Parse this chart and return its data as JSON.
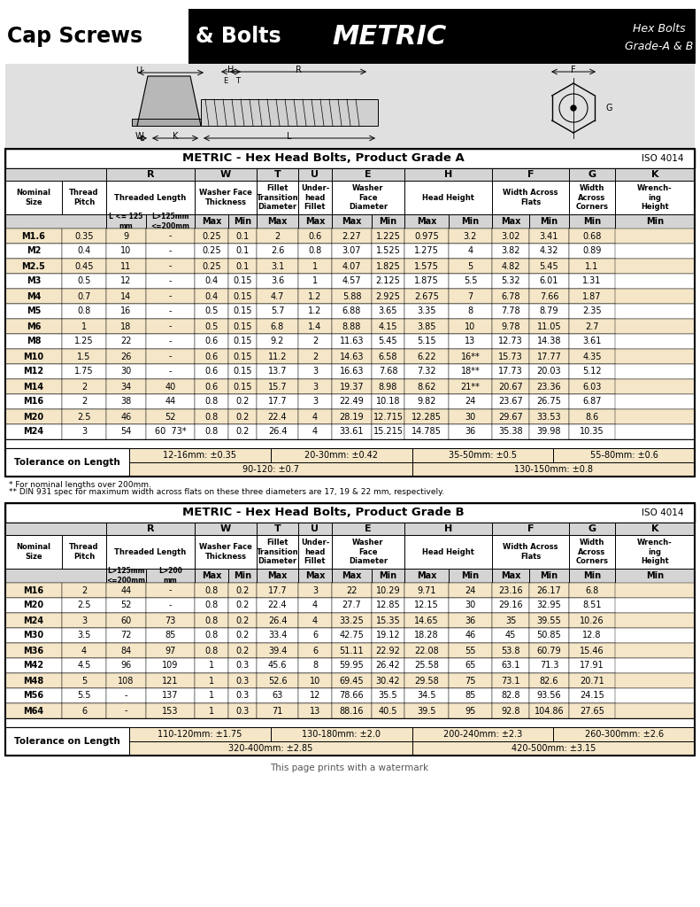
{
  "grade_a_title": "METRIC - Hex Head Bolts, Product Grade A",
  "grade_a_iso": "ISO 4014",
  "grade_b_title": "METRIC - Hex Head Bolts, Product Grade B",
  "grade_b_iso": "ISO 4014",
  "grade_a_data": [
    [
      "M1.6",
      "0.35",
      "9",
      "-",
      "0.25",
      "0.1",
      "2",
      "0.6",
      "2.27",
      "1.225",
      "0.975",
      "3.2",
      "3.02",
      "3.41",
      "0.68"
    ],
    [
      "M2",
      "0.4",
      "10",
      "-",
      "0.25",
      "0.1",
      "2.6",
      "0.8",
      "3.07",
      "1.525",
      "1.275",
      "4",
      "3.82",
      "4.32",
      "0.89"
    ],
    [
      "M2.5",
      "0.45",
      "11",
      "-",
      "0.25",
      "0.1",
      "3.1",
      "1",
      "4.07",
      "1.825",
      "1.575",
      "5",
      "4.82",
      "5.45",
      "1.1"
    ],
    [
      "M3",
      "0.5",
      "12",
      "-",
      "0.4",
      "0.15",
      "3.6",
      "1",
      "4.57",
      "2.125",
      "1.875",
      "5.5",
      "5.32",
      "6.01",
      "1.31"
    ],
    [
      "M4",
      "0.7",
      "14",
      "-",
      "0.4",
      "0.15",
      "4.7",
      "1.2",
      "5.88",
      "2.925",
      "2.675",
      "7",
      "6.78",
      "7.66",
      "1.87"
    ],
    [
      "M5",
      "0.8",
      "16",
      "-",
      "0.5",
      "0.15",
      "5.7",
      "1.2",
      "6.88",
      "3.65",
      "3.35",
      "8",
      "7.78",
      "8.79",
      "2.35"
    ],
    [
      "M6",
      "1",
      "18",
      "-",
      "0.5",
      "0.15",
      "6.8",
      "1.4",
      "8.88",
      "4.15",
      "3.85",
      "10",
      "9.78",
      "11.05",
      "2.7"
    ],
    [
      "M8",
      "1.25",
      "22",
      "-",
      "0.6",
      "0.15",
      "9.2",
      "2",
      "11.63",
      "5.45",
      "5.15",
      "13",
      "12.73",
      "14.38",
      "3.61"
    ],
    [
      "M10",
      "1.5",
      "26",
      "-",
      "0.6",
      "0.15",
      "11.2",
      "2",
      "14.63",
      "6.58",
      "6.22",
      "16**",
      "15.73",
      "17.77",
      "4.35"
    ],
    [
      "M12",
      "1.75",
      "30",
      "-",
      "0.6",
      "0.15",
      "13.7",
      "3",
      "16.63",
      "7.68",
      "7.32",
      "18**",
      "17.73",
      "20.03",
      "5.12"
    ],
    [
      "M14",
      "2",
      "34",
      "40",
      "0.6",
      "0.15",
      "15.7",
      "3",
      "19.37",
      "8.98",
      "8.62",
      "21**",
      "20.67",
      "23.36",
      "6.03"
    ],
    [
      "M16",
      "2",
      "38",
      "44",
      "0.8",
      "0.2",
      "17.7",
      "3",
      "22.49",
      "10.18",
      "9.82",
      "24",
      "23.67",
      "26.75",
      "6.87"
    ],
    [
      "M20",
      "2.5",
      "46",
      "52",
      "0.8",
      "0.2",
      "22.4",
      "4",
      "28.19",
      "12.715",
      "12.285",
      "30",
      "29.67",
      "33.53",
      "8.6"
    ],
    [
      "M24",
      "3",
      "54",
      "60  73*",
      "0.8",
      "0.2",
      "26.4",
      "4",
      "33.61",
      "15.215",
      "14.785",
      "36",
      "35.38",
      "39.98",
      "10.35"
    ]
  ],
  "grade_a_tolerance": [
    [
      "12-16mm: ±0.35",
      "20-30mm: ±0.42",
      "35-50mm: ±0.5",
      "55-80mm: ±0.6"
    ],
    [
      "90-120: ±0.7",
      "130-150mm: ±0.8"
    ]
  ],
  "grade_a_note1": "* For nominal lengths over 200mm.",
  "grade_a_note2": "** DIN 931 spec for maximum width across flats on these three diameters are 17, 19 & 22 mm, respectively.",
  "grade_b_data": [
    [
      "M16",
      "2",
      "44",
      "-",
      "0.8",
      "0.2",
      "17.7",
      "3",
      "22",
      "10.29",
      "9.71",
      "24",
      "23.16",
      "26.17",
      "6.8"
    ],
    [
      "M20",
      "2.5",
      "52",
      "-",
      "0.8",
      "0.2",
      "22.4",
      "4",
      "27.7",
      "12.85",
      "12.15",
      "30",
      "29.16",
      "32.95",
      "8.51"
    ],
    [
      "M24",
      "3",
      "60",
      "73",
      "0.8",
      "0.2",
      "26.4",
      "4",
      "33.25",
      "15.35",
      "14.65",
      "36",
      "35",
      "39.55",
      "10.26"
    ],
    [
      "M30",
      "3.5",
      "72",
      "85",
      "0.8",
      "0.2",
      "33.4",
      "6",
      "42.75",
      "19.12",
      "18.28",
      "46",
      "45",
      "50.85",
      "12.8"
    ],
    [
      "M36",
      "4",
      "84",
      "97",
      "0.8",
      "0.2",
      "39.4",
      "6",
      "51.11",
      "22.92",
      "22.08",
      "55",
      "53.8",
      "60.79",
      "15.46"
    ],
    [
      "M42",
      "4.5",
      "96",
      "109",
      "1",
      "0.3",
      "45.6",
      "8",
      "59.95",
      "26.42",
      "25.58",
      "65",
      "63.1",
      "71.3",
      "17.91"
    ],
    [
      "M48",
      "5",
      "108",
      "121",
      "1",
      "0.3",
      "52.6",
      "10",
      "69.45",
      "30.42",
      "29.58",
      "75",
      "73.1",
      "82.6",
      "20.71"
    ],
    [
      "M56",
      "5.5",
      "-",
      "137",
      "1",
      "0.3",
      "63",
      "12",
      "78.66",
      "35.5",
      "34.5",
      "85",
      "82.8",
      "93.56",
      "24.15"
    ],
    [
      "M64",
      "6",
      "-",
      "153",
      "1",
      "0.3",
      "71",
      "13",
      "88.16",
      "40.5",
      "39.5",
      "95",
      "92.8",
      "104.86",
      "27.65"
    ]
  ],
  "grade_b_tolerance": [
    [
      "110-120mm: ±1.75",
      "130-180mm: ±2.0",
      "200-240mm: ±2.3",
      "260-300mm: ±2.6"
    ],
    [
      "320-400mm: ±2.85",
      "420-500mm: ±3.15"
    ]
  ],
  "footer": "This page prints with a watermark",
  "row_alt_color": "#f5e6c8",
  "row_white": "#ffffff",
  "header_bg": "#d4d4d4",
  "tol_bg": "#f5e6c8"
}
